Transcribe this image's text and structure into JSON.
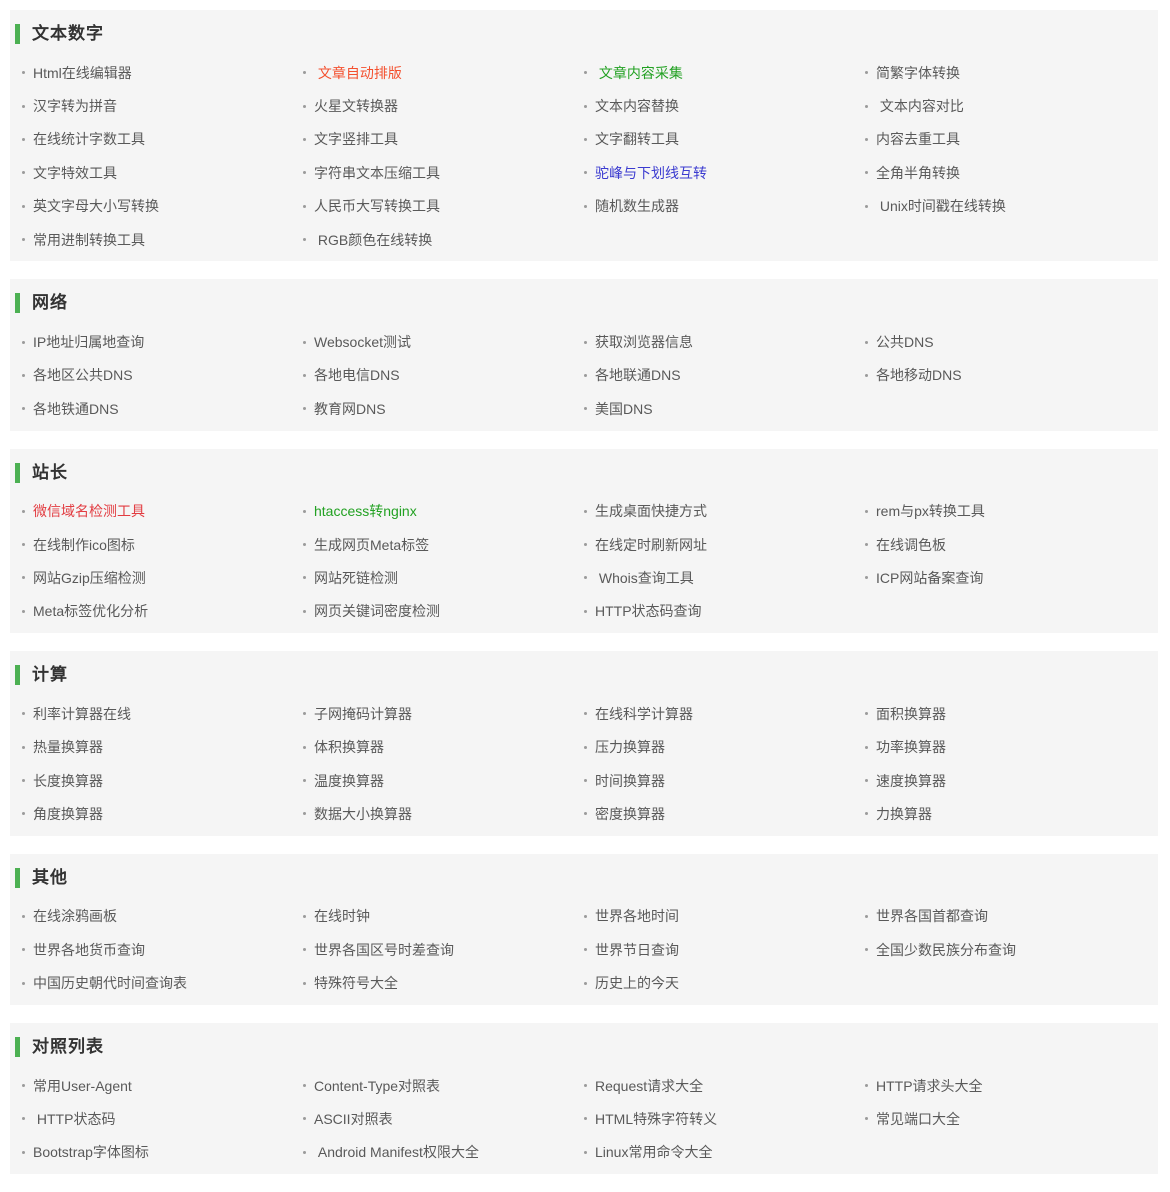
{
  "page": {
    "background": "#ffffff",
    "card_background": "#f5f5f5",
    "accent_green": "#4cb052",
    "title_color": "#333333",
    "item_color": "#595959",
    "bullet_color": "#9b9b9b"
  },
  "sections": [
    {
      "title": "文本数字",
      "items": [
        {
          "label": "Html在线编辑器"
        },
        {
          "label": " 文章自动排版",
          "color": "#f4502e"
        },
        {
          "label": " 文章内容采集",
          "color": "#22a122"
        },
        {
          "label": "简繁字体转换"
        },
        {
          "label": "汉字转为拼音"
        },
        {
          "label": "火星文转换器"
        },
        {
          "label": "文本内容替换"
        },
        {
          "label": " 文本内容对比"
        },
        {
          "label": "在线统计字数工具"
        },
        {
          "label": "文字竖排工具"
        },
        {
          "label": "文字翻转工具"
        },
        {
          "label": "内容去重工具"
        },
        {
          "label": "文字特效工具"
        },
        {
          "label": "字符串文本压缩工具"
        },
        {
          "label": "驼峰与下划线互转",
          "color": "#3b3bd0"
        },
        {
          "label": "全角半角转换"
        },
        {
          "label": "英文字母大小写转换"
        },
        {
          "label": "人民币大写转换工具"
        },
        {
          "label": "随机数生成器"
        },
        {
          "label": " Unix时间戳在线转换"
        },
        {
          "label": "常用进制转换工具"
        },
        {
          "label": " RGB颜色在线转换"
        }
      ]
    },
    {
      "title": "网络",
      "items": [
        {
          "label": "IP地址归属地查询"
        },
        {
          "label": "Websocket测试"
        },
        {
          "label": "获取浏览器信息"
        },
        {
          "label": "公共DNS"
        },
        {
          "label": "各地区公共DNS"
        },
        {
          "label": "各地电信DNS"
        },
        {
          "label": "各地联通DNS"
        },
        {
          "label": "各地移动DNS"
        },
        {
          "label": "各地铁通DNS"
        },
        {
          "label": "教育网DNS"
        },
        {
          "label": "美国DNS"
        }
      ]
    },
    {
      "title": "站长",
      "items": [
        {
          "label": "微信域名检测工具",
          "color": "#e23c41"
        },
        {
          "label": "htaccess转nginx",
          "color": "#22a122"
        },
        {
          "label": "生成桌面快捷方式"
        },
        {
          "label": "rem与px转换工具"
        },
        {
          "label": "在线制作ico图标"
        },
        {
          "label": "生成网页Meta标签"
        },
        {
          "label": "在线定时刷新网址"
        },
        {
          "label": "在线调色板"
        },
        {
          "label": "网站Gzip压缩检测"
        },
        {
          "label": "网站死链检测"
        },
        {
          "label": " Whois查询工具"
        },
        {
          "label": "ICP网站备案查询"
        },
        {
          "label": "Meta标签优化分析"
        },
        {
          "label": "网页关键词密度检测"
        },
        {
          "label": "HTTP状态码查询"
        }
      ]
    },
    {
      "title": "计算",
      "items": [
        {
          "label": "利率计算器在线"
        },
        {
          "label": "子网掩码计算器"
        },
        {
          "label": "在线科学计算器"
        },
        {
          "label": "面积换算器"
        },
        {
          "label": "热量换算器"
        },
        {
          "label": "体积换算器"
        },
        {
          "label": "压力换算器"
        },
        {
          "label": "功率换算器"
        },
        {
          "label": "长度换算器"
        },
        {
          "label": "温度换算器"
        },
        {
          "label": "时间换算器"
        },
        {
          "label": "速度换算器"
        },
        {
          "label": "角度换算器"
        },
        {
          "label": "数据大小换算器"
        },
        {
          "label": "密度换算器"
        },
        {
          "label": "力换算器"
        }
      ]
    },
    {
      "title": "其他",
      "items": [
        {
          "label": "在线涂鸦画板"
        },
        {
          "label": "在线时钟"
        },
        {
          "label": "世界各地时间"
        },
        {
          "label": "世界各国首都查询"
        },
        {
          "label": "世界各地货币查询"
        },
        {
          "label": "世界各国区号时差查询"
        },
        {
          "label": "世界节日查询"
        },
        {
          "label": "全国少数民族分布查询"
        },
        {
          "label": "中国历史朝代时间查询表"
        },
        {
          "label": "特殊符号大全"
        },
        {
          "label": "历史上的今天"
        }
      ]
    },
    {
      "title": "对照列表",
      "items": [
        {
          "label": "常用User-Agent"
        },
        {
          "label": "Content-Type对照表"
        },
        {
          "label": "Request请求大全"
        },
        {
          "label": "HTTP请求头大全"
        },
        {
          "label": " HTTP状态码"
        },
        {
          "label": "ASCII对照表"
        },
        {
          "label": "HTML特殊字符转义"
        },
        {
          "label": "常见端口大全"
        },
        {
          "label": "Bootstrap字体图标"
        },
        {
          "label": " Android Manifest权限大全"
        },
        {
          "label": "Linux常用命令大全"
        }
      ]
    }
  ]
}
